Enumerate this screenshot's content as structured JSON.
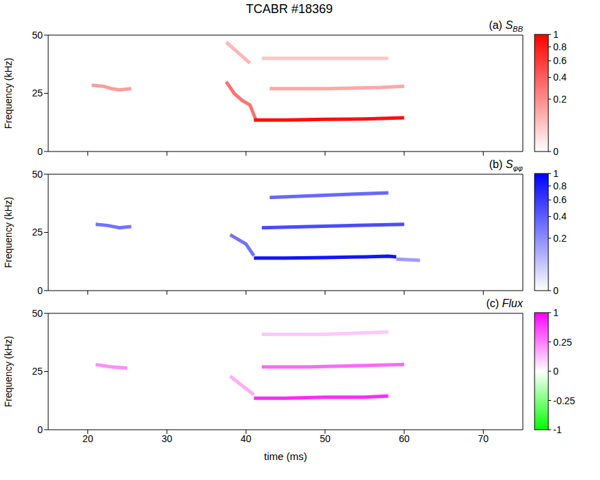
{
  "title": "TCABR #18369",
  "chart_data": [
    {
      "type": "spectrogram",
      "label": "(a)",
      "symbol": "S",
      "subscript": "BB",
      "ylabel": "Frequency (kHz)",
      "xlim": [
        15,
        75
      ],
      "xticks": [
        20,
        30,
        40,
        50,
        60,
        70
      ],
      "ylim": [
        0,
        50
      ],
      "yticks": [
        0,
        25,
        50
      ],
      "tick_labels": "y",
      "colorbar": {
        "range": [
          0,
          1
        ],
        "ticks": [
          0,
          0.2,
          0.4,
          0.6,
          0.8,
          1
        ],
        "colors": [
          "#ffffff",
          "#ff0000"
        ]
      },
      "traces": [
        {
          "x": [
            20.5,
            22,
            23,
            24,
            25.5
          ],
          "values": [
            28.5,
            28,
            27,
            26.5,
            27
          ],
          "intensity": 0.15
        },
        {
          "x": [
            37.5,
            38.5,
            39.5,
            40.5,
            41.2
          ],
          "values": [
            30,
            25,
            22,
            20,
            14
          ],
          "intensity": 0.3
        },
        {
          "x": [
            37.5,
            38.5,
            39.5,
            40.5
          ],
          "values": [
            47,
            44,
            41,
            38
          ],
          "intensity": 0.08
        },
        {
          "x": [
            41,
            45,
            50,
            55,
            60
          ],
          "values": [
            13.5,
            13.5,
            13.8,
            14,
            14.5
          ],
          "intensity": 0.9
        },
        {
          "x": [
            43,
            50,
            57,
            60
          ],
          "values": [
            27,
            27,
            27.5,
            28
          ],
          "intensity": 0.12
        },
        {
          "x": [
            42,
            50,
            58
          ],
          "values": [
            40,
            40,
            40
          ],
          "intensity": 0.05
        }
      ]
    },
    {
      "type": "spectrogram",
      "label": "(b)",
      "symbol": "S",
      "subscript": "φφ",
      "ylabel": "Frequency (kHz)",
      "xlim": [
        15,
        75
      ],
      "xticks": [
        20,
        30,
        40,
        50,
        60,
        70
      ],
      "ylim": [
        0,
        50
      ],
      "yticks": [
        0,
        25,
        50
      ],
      "tick_labels": "y",
      "colorbar": {
        "range": [
          0,
          1
        ],
        "ticks": [
          0,
          0.2,
          0.4,
          0.6,
          0.8,
          1
        ],
        "colors": [
          "#ffffff",
          "#0000ff"
        ]
      },
      "traces": [
        {
          "x": [
            21,
            22.5,
            24,
            25.5
          ],
          "values": [
            28.5,
            28,
            27,
            27.5
          ],
          "intensity": 0.3
        },
        {
          "x": [
            38,
            39,
            40,
            41
          ],
          "values": [
            24,
            22,
            20,
            15
          ],
          "intensity": 0.3
        },
        {
          "x": [
            41,
            45,
            50,
            55,
            58,
            59
          ],
          "values": [
            14,
            14,
            14.2,
            14.5,
            14.8,
            14.5
          ],
          "intensity": 0.85
        },
        {
          "x": [
            59,
            62
          ],
          "values": [
            13.5,
            13
          ],
          "intensity": 0.15
        },
        {
          "x": [
            42,
            48,
            54,
            60
          ],
          "values": [
            27,
            27.5,
            28,
            28.5
          ],
          "intensity": 0.5
        },
        {
          "x": [
            43,
            50,
            58
          ],
          "values": [
            40,
            41,
            42
          ],
          "intensity": 0.35
        }
      ]
    },
    {
      "type": "spectrogram",
      "label": "(c)",
      "symbol": "Flux",
      "ylabel": "Frequency (kHz)",
      "xlabel": "time (ms)",
      "xlim": [
        15,
        75
      ],
      "xticks": [
        20,
        30,
        40,
        50,
        60,
        70
      ],
      "ylim": [
        0,
        50
      ],
      "yticks": [
        0,
        25,
        50
      ],
      "colorbar": {
        "range": [
          -1,
          1
        ],
        "ticks": [
          -1,
          -0.25,
          0,
          0.25,
          1
        ],
        "colors": [
          "#00ff00",
          "#ffffff",
          "#ff00ff"
        ]
      },
      "traces": [
        {
          "x": [
            21,
            23,
            25
          ],
          "values": [
            28,
            27,
            26.5
          ],
          "intensity": 0.2
        },
        {
          "x": [
            38,
            39.5,
            41
          ],
          "values": [
            23,
            19,
            15
          ],
          "intensity": 0.1
        },
        {
          "x": [
            41,
            45,
            50,
            55,
            58
          ],
          "values": [
            13.5,
            13.5,
            14,
            14,
            14.5
          ],
          "intensity": 0.7
        },
        {
          "x": [
            42,
            48,
            54,
            60
          ],
          "values": [
            27,
            27,
            27.5,
            28
          ],
          "intensity": 0.35
        },
        {
          "x": [
            42,
            50,
            58
          ],
          "values": [
            41,
            41,
            42
          ],
          "intensity": 0.05
        }
      ]
    }
  ]
}
